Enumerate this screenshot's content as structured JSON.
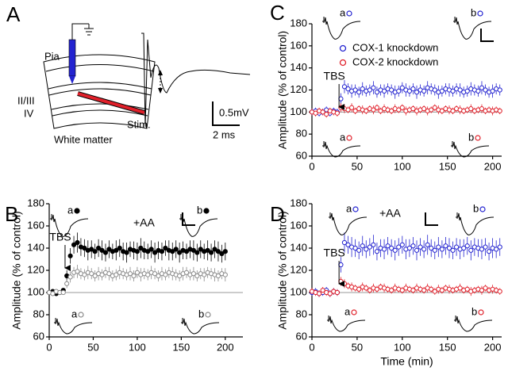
{
  "panel_a": {
    "letter": "A",
    "pia": "Pia",
    "layer_23": "II/III",
    "layer_4": "IV",
    "stim": "Stim.",
    "white_matter": "White matter",
    "scale_voltage": "0.5mV",
    "scale_time": "2 ms"
  },
  "chart_data": [
    {
      "type": "scatter",
      "panel": "B",
      "y_label": "Amplitude (% of control)",
      "xlim": [
        0,
        220
      ],
      "xticks": [
        0,
        50,
        100,
        150,
        200
      ],
      "ylim": [
        60,
        180
      ],
      "yticks": [
        60,
        80,
        100,
        120,
        140,
        160,
        180
      ],
      "hline": 100,
      "annotations": [
        {
          "text": "TBS",
          "x": 18
        },
        {
          "text": "+AA"
        }
      ],
      "inset_labels": [
        "a",
        "b",
        "a",
        "b"
      ],
      "x": [
        0,
        4,
        8,
        12,
        16,
        20,
        24,
        28,
        32,
        36,
        40,
        44,
        48,
        52,
        56,
        60,
        64,
        68,
        72,
        76,
        80,
        84,
        88,
        92,
        96,
        100,
        104,
        108,
        112,
        116,
        120,
        124,
        128,
        132,
        136,
        140,
        144,
        148,
        152,
        156,
        160,
        164,
        168,
        172,
        176,
        180,
        184,
        188,
        192,
        196,
        200
      ],
      "series": [
        {
          "color": "#000000",
          "marker": "filled",
          "values": [
            100,
            101,
            99,
            100,
            102,
            115,
            133,
            143,
            145,
            141,
            140,
            138,
            139,
            137,
            140,
            138,
            136,
            139,
            137,
            138,
            140,
            137,
            136,
            139,
            138,
            137,
            140,
            138,
            137,
            139,
            136,
            138,
            137,
            140,
            138,
            137,
            139,
            136,
            138,
            137,
            139,
            138,
            136,
            139,
            137,
            138,
            136,
            139,
            137,
            135,
            137
          ],
          "errors": [
            2,
            2,
            2,
            2,
            2,
            5,
            7,
            8,
            9,
            8,
            8,
            9,
            8,
            7,
            8,
            9,
            8,
            8,
            7,
            9,
            8,
            8,
            9,
            7,
            8,
            8,
            9,
            8,
            7,
            8,
            9,
            8,
            8,
            7,
            9,
            8,
            8,
            9,
            8,
            7,
            8,
            9,
            8,
            8,
            7,
            9,
            8,
            8,
            9,
            8,
            8
          ]
        },
        {
          "color": "#8a8a8a",
          "marker": "open",
          "values": [
            100,
            99,
            101,
            100,
            100,
            108,
            114,
            118,
            119,
            117,
            116,
            118,
            117,
            115,
            117,
            116,
            118,
            117,
            115,
            116,
            118,
            117,
            116,
            117,
            115,
            118,
            116,
            117,
            116,
            118,
            117,
            115,
            117,
            116,
            118,
            117,
            116,
            115,
            117,
            118,
            116,
            117,
            115,
            117,
            116,
            118,
            117,
            116,
            115,
            117,
            116
          ],
          "errors": [
            2,
            2,
            2,
            2,
            2,
            4,
            5,
            5,
            6,
            5,
            5,
            6,
            5,
            5,
            6,
            5,
            5,
            6,
            5,
            5,
            6,
            5,
            5,
            6,
            5,
            5,
            6,
            5,
            5,
            6,
            5,
            5,
            6,
            5,
            5,
            6,
            5,
            5,
            6,
            5,
            5,
            6,
            5,
            5,
            6,
            5,
            5,
            6,
            5,
            5,
            6
          ]
        }
      ]
    },
    {
      "type": "scatter",
      "panel": "C",
      "y_label": "Amplitude (% of control)",
      "xlim": [
        0,
        210
      ],
      "xticks": [
        0,
        50,
        100,
        150,
        200
      ],
      "ylim": [
        60,
        180
      ],
      "yticks": [
        60,
        80,
        100,
        120,
        140,
        160,
        180
      ],
      "hline": 100,
      "legend": "upper right",
      "annotations": [
        {
          "text": "TBS",
          "x": 30
        }
      ],
      "inset_labels": [
        "a",
        "b",
        "a",
        "b"
      ],
      "x": [
        0,
        4,
        8,
        12,
        16,
        20,
        24,
        28,
        32,
        36,
        40,
        44,
        48,
        52,
        56,
        60,
        64,
        68,
        72,
        76,
        80,
        84,
        88,
        92,
        96,
        100,
        104,
        108,
        112,
        116,
        120,
        124,
        128,
        132,
        136,
        140,
        144,
        148,
        152,
        156,
        160,
        164,
        168,
        172,
        176,
        180,
        184,
        188,
        192,
        196,
        200,
        204,
        208
      ],
      "series": [
        {
          "name": "COX-1 knockdown",
          "color": "#2323d0",
          "marker": "open",
          "values": [
            100,
            101,
            99,
            100,
            102,
            99,
            101,
            100,
            112,
            123,
            121,
            119,
            120,
            118,
            121,
            119,
            120,
            122,
            118,
            120,
            119,
            121,
            120,
            118,
            119,
            122,
            120,
            119,
            121,
            118,
            120,
            119,
            122,
            121,
            120,
            118,
            119,
            121,
            120,
            119,
            121,
            120,
            118,
            119,
            121,
            120,
            119,
            122,
            120,
            118,
            119,
            121,
            120
          ],
          "errors": [
            3,
            3,
            3,
            3,
            3,
            3,
            3,
            3,
            5,
            6,
            5,
            6,
            5,
            5,
            6,
            5,
            5,
            6,
            5,
            5,
            6,
            5,
            5,
            6,
            5,
            5,
            6,
            5,
            5,
            6,
            5,
            5,
            6,
            5,
            5,
            6,
            5,
            5,
            6,
            5,
            5,
            6,
            5,
            5,
            6,
            5,
            5,
            6,
            5,
            5,
            6,
            5,
            5
          ]
        },
        {
          "name": "COX-2 knockdown",
          "color": "#e0202a",
          "marker": "open",
          "values": [
            100,
            99,
            101,
            100,
            98,
            101,
            100,
            99,
            104,
            103,
            102,
            104,
            101,
            103,
            102,
            101,
            103,
            102,
            104,
            101,
            103,
            102,
            101,
            103,
            102,
            104,
            101,
            102,
            103,
            101,
            102,
            103,
            101,
            102,
            104,
            102,
            101,
            103,
            102,
            101,
            103,
            102,
            101,
            102,
            103,
            101,
            102,
            103,
            101,
            102,
            101,
            102,
            101
          ],
          "errors": [
            3,
            3,
            3,
            3,
            3,
            3,
            3,
            3,
            4,
            4,
            3,
            4,
            3,
            3,
            4,
            3,
            3,
            4,
            3,
            3,
            4,
            3,
            3,
            4,
            3,
            3,
            4,
            3,
            3,
            4,
            3,
            3,
            4,
            3,
            3,
            4,
            3,
            3,
            4,
            3,
            3,
            4,
            3,
            3,
            4,
            3,
            3,
            4,
            3,
            3,
            4,
            3,
            3
          ]
        }
      ]
    },
    {
      "type": "scatter",
      "panel": "D",
      "y_label": "Amplitude (% of control)",
      "x_label": "Time (min)",
      "xlim": [
        0,
        210
      ],
      "xticks": [
        0,
        50,
        100,
        150,
        200
      ],
      "ylim": [
        60,
        180
      ],
      "yticks": [
        60,
        80,
        100,
        120,
        140,
        160,
        180
      ],
      "hline": 100,
      "annotations": [
        {
          "text": "TBS",
          "x": 30
        },
        {
          "text": "+AA"
        }
      ],
      "inset_labels": [
        "a",
        "b",
        "a",
        "b"
      ],
      "x": [
        0,
        4,
        8,
        12,
        16,
        20,
        24,
        28,
        32,
        36,
        40,
        44,
        48,
        52,
        56,
        60,
        64,
        68,
        72,
        76,
        80,
        84,
        88,
        92,
        96,
        100,
        104,
        108,
        112,
        116,
        120,
        124,
        128,
        132,
        136,
        140,
        144,
        148,
        152,
        156,
        160,
        164,
        168,
        172,
        176,
        180,
        184,
        188,
        192,
        196,
        200,
        204,
        208
      ],
      "series": [
        {
          "color": "#2323d0",
          "marker": "open",
          "values": [
            100,
            101,
            99,
            100,
            102,
            99,
            101,
            100,
            125,
            145,
            143,
            141,
            140,
            138,
            142,
            139,
            141,
            143,
            137,
            140,
            139,
            142,
            140,
            138,
            141,
            143,
            139,
            140,
            142,
            138,
            141,
            139,
            143,
            140,
            138,
            141,
            139,
            142,
            140,
            138,
            141,
            139,
            140,
            142,
            138,
            141,
            140,
            139,
            141,
            137,
            140,
            139,
            141
          ],
          "errors": [
            3,
            3,
            3,
            3,
            3,
            3,
            3,
            3,
            7,
            9,
            8,
            9,
            8,
            8,
            9,
            8,
            8,
            9,
            8,
            8,
            9,
            8,
            8,
            9,
            8,
            8,
            9,
            8,
            8,
            9,
            8,
            8,
            9,
            8,
            8,
            9,
            8,
            8,
            9,
            8,
            8,
            9,
            8,
            8,
            9,
            8,
            8,
            9,
            8,
            8,
            9,
            8,
            8
          ]
        },
        {
          "color": "#e0202a",
          "marker": "open",
          "values": [
            101,
            100,
            99,
            102,
            100,
            99,
            101,
            100,
            110,
            108,
            106,
            105,
            104,
            103,
            105,
            104,
            102,
            104,
            103,
            105,
            104,
            103,
            102,
            104,
            103,
            102,
            104,
            103,
            102,
            104,
            103,
            102,
            104,
            103,
            101,
            103,
            102,
            104,
            103,
            102,
            103,
            104,
            102,
            103,
            101,
            102,
            103,
            102,
            104,
            102,
            103,
            102,
            101
          ],
          "errors": [
            3,
            3,
            3,
            3,
            3,
            3,
            3,
            3,
            4,
            4,
            3,
            4,
            3,
            3,
            4,
            3,
            3,
            4,
            3,
            3,
            4,
            3,
            3,
            4,
            3,
            3,
            4,
            3,
            3,
            4,
            3,
            3,
            4,
            3,
            3,
            4,
            3,
            3,
            4,
            3,
            3,
            4,
            3,
            3,
            4,
            3,
            3,
            4,
            3,
            3,
            4,
            3,
            3
          ]
        }
      ]
    }
  ]
}
